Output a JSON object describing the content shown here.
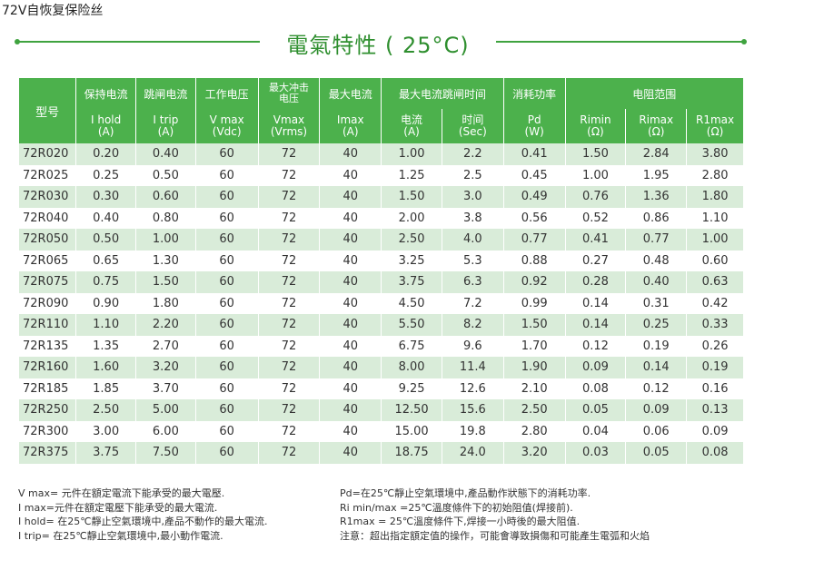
{
  "caption": "72V自恢复保险丝",
  "title": "電氣特性 ( 25°C)",
  "header": {
    "model": "型号",
    "hold": "保持电流",
    "trip": "跳闸电流",
    "vmax": "工作电压",
    "vrms": "最大冲击电压",
    "imax": "最大电流",
    "maxtrip": "最大电流跳闸时间",
    "pd": "消耗功率",
    "resistance": "电阻范围",
    "sub": {
      "hold": "I hold",
      "trip": "I trip",
      "vmax": "V max",
      "vrms": "Vmax",
      "imax": "Imax",
      "current": "电流",
      "time": "时间",
      "pd": "Pd",
      "rimin": "Rimin",
      "rimax": "Rimax",
      "r1max": "R1max"
    },
    "units": {
      "hold": "(A)",
      "trip": "(A)",
      "vmax": "(Vdc)",
      "vrms": "(Vrms)",
      "imax": "(A)",
      "current": "(A)",
      "time": "(Sec)",
      "pd": "(W)",
      "rimin": "(Ω)",
      "rimax": "(Ω)",
      "r1max": "(Ω)"
    }
  },
  "rows": [
    [
      "72R020",
      "0.20",
      "0.40",
      "60",
      "72",
      "40",
      "1.00",
      "2.2",
      "0.41",
      "1.50",
      "2.84",
      "3.80"
    ],
    [
      "72R025",
      "0.25",
      "0.50",
      "60",
      "72",
      "40",
      "1.25",
      "2.5",
      "0.45",
      "1.00",
      "1.95",
      "2.80"
    ],
    [
      "72R030",
      "0.30",
      "0.60",
      "60",
      "72",
      "40",
      "1.50",
      "3.0",
      "0.49",
      "0.76",
      "1.36",
      "1.80"
    ],
    [
      "72R040",
      "0.40",
      "0.80",
      "60",
      "72",
      "40",
      "2.00",
      "3.8",
      "0.56",
      "0.52",
      "0.86",
      "1.10"
    ],
    [
      "72R050",
      "0.50",
      "1.00",
      "60",
      "72",
      "40",
      "2.50",
      "4.0",
      "0.77",
      "0.41",
      "0.77",
      "1.00"
    ],
    [
      "72R065",
      "0.65",
      "1.30",
      "60",
      "72",
      "40",
      "3.25",
      "5.3",
      "0.88",
      "0.27",
      "0.48",
      "0.60"
    ],
    [
      "72R075",
      "0.75",
      "1.50",
      "60",
      "72",
      "40",
      "3.75",
      "6.3",
      "0.92",
      "0.28",
      "0.40",
      "0.63"
    ],
    [
      "72R090",
      "0.90",
      "1.80",
      "60",
      "72",
      "40",
      "4.50",
      "7.2",
      "0.99",
      "0.14",
      "0.31",
      "0.42"
    ],
    [
      "72R110",
      "1.10",
      "2.20",
      "60",
      "72",
      "40",
      "5.50",
      "8.2",
      "1.50",
      "0.14",
      "0.25",
      "0.33"
    ],
    [
      "72R135",
      "1.35",
      "2.70",
      "60",
      "72",
      "40",
      "6.75",
      "9.6",
      "1.70",
      "0.12",
      "0.19",
      "0.26"
    ],
    [
      "72R160",
      "1.60",
      "3.20",
      "60",
      "72",
      "40",
      "8.00",
      "11.4",
      "1.90",
      "0.09",
      "0.14",
      "0.19"
    ],
    [
      "72R185",
      "1.85",
      "3.70",
      "60",
      "72",
      "40",
      "9.25",
      "12.6",
      "2.10",
      "0.08",
      "0.12",
      "0.16"
    ],
    [
      "72R250",
      "2.50",
      "5.00",
      "60",
      "72",
      "40",
      "12.50",
      "15.6",
      "2.50",
      "0.05",
      "0.09",
      "0.13"
    ],
    [
      "72R300",
      "3.00",
      "6.00",
      "60",
      "72",
      "40",
      "15.00",
      "19.8",
      "2.80",
      "0.04",
      "0.06",
      "0.09"
    ],
    [
      "72R375",
      "3.75",
      "7.50",
      "60",
      "72",
      "40",
      "18.75",
      "24.0",
      "3.20",
      "0.03",
      "0.05",
      "0.08"
    ]
  ],
  "notes_left": [
    "V max= 元件在額定電流下能承受的最大電壓.",
    "I max=元件在額定電壓下能承受的最大電流.",
    "I hold= 在25℃靜止空氣環境中,產品不動作的最大電流.",
    "I trip= 在25℃靜止空氣環境中,最小動作電流."
  ],
  "notes_right": [
    "Pd=在25℃靜止空氣環境中,產品動作狀態下的消耗功率.",
    "Ri min/max  =25℃溫度條件下的初始阻值(焊接前).",
    "R1max  = 25℃溫度條件下,焊接一小時後的最大阻值.",
    "注意：超出指定額定值的操作，可能會導致損傷和可能產生電弧和火焰"
  ]
}
